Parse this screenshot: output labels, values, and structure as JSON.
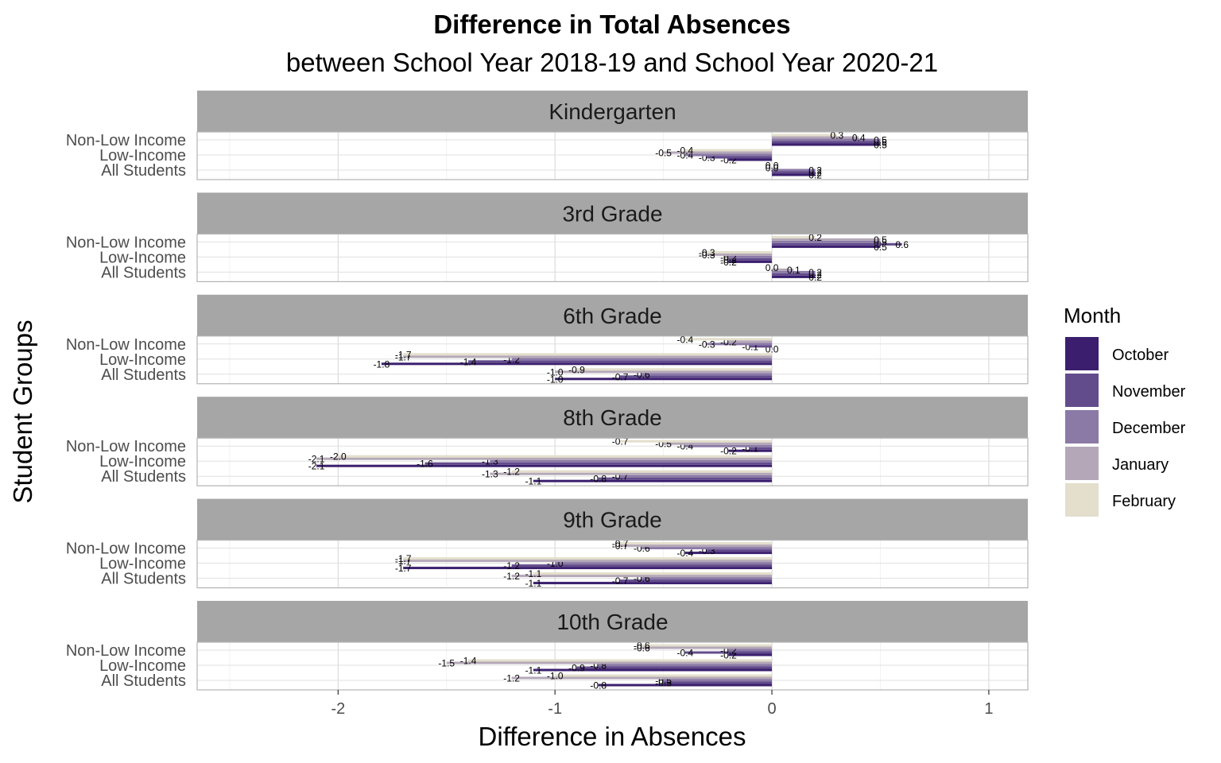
{
  "chart_data": {
    "type": "bar",
    "orientation": "horizontal",
    "title": "Difference in Total Absences",
    "subtitle": "between School Year 2018-19 and School Year 2020-21",
    "xlabel": "Difference in Absences",
    "ylabel": "Student Groups",
    "xlim": [
      -2.65,
      1.18
    ],
    "x_ticks": [
      -2,
      -1,
      0,
      1
    ],
    "x_tick_labels": [
      "-2",
      "-1",
      "0",
      "1"
    ],
    "grid": true,
    "legend": {
      "title": "Month",
      "position": "right",
      "entries": [
        {
          "name": "October",
          "color": "#3b1f6e"
        },
        {
          "name": "November",
          "color": "#634c8c"
        },
        {
          "name": "December",
          "color": "#8b7aa6"
        },
        {
          "name": "January",
          "color": "#b4a8b8"
        },
        {
          "name": "February",
          "color": "#e3dfcc"
        }
      ]
    },
    "groups": [
      "Non-Low Income",
      "Low-Income",
      "All Students"
    ],
    "panels": [
      {
        "name": "Kindergarten",
        "rows": [
          {
            "group": "Non-Low Income",
            "values": [
              0.5,
              0.5,
              0.5,
              0.4,
              0.3
            ]
          },
          {
            "group": "Low-Income",
            "values": [
              -0.2,
              -0.3,
              -0.4,
              -0.5,
              -0.4
            ]
          },
          {
            "group": "All Students",
            "values": [
              0.2,
              0.2,
              0.2,
              0.0,
              0.0
            ]
          }
        ]
      },
      {
        "name": "3rd Grade",
        "rows": [
          {
            "group": "Non-Low Income",
            "values": [
              0.5,
              0.6,
              0.5,
              0.5,
              0.2
            ]
          },
          {
            "group": "Low-Income",
            "values": [
              -0.2,
              -0.2,
              -0.2,
              -0.3,
              -0.3
            ]
          },
          {
            "group": "All Students",
            "values": [
              0.2,
              0.2,
              0.2,
              0.1,
              0.0
            ]
          }
        ]
      },
      {
        "name": "6th Grade",
        "rows": [
          {
            "group": "Non-Low Income",
            "values": [
              0.0,
              -0.1,
              -0.3,
              -0.2,
              -0.4
            ]
          },
          {
            "group": "Low-Income",
            "values": [
              -1.8,
              -1.4,
              -1.2,
              -1.7,
              -1.7
            ]
          },
          {
            "group": "All Students",
            "values": [
              -1.0,
              -0.7,
              -0.6,
              -1.0,
              -0.9
            ]
          }
        ]
      },
      {
        "name": "8th Grade",
        "rows": [
          {
            "group": "Non-Low Income",
            "values": [
              -0.2,
              -0.1,
              -0.4,
              -0.5,
              -0.7
            ]
          },
          {
            "group": "Low-Income",
            "values": [
              -2.1,
              -1.6,
              -1.3,
              -2.1,
              -2.0
            ]
          },
          {
            "group": "All Students",
            "values": [
              -1.1,
              -0.8,
              -0.7,
              -1.3,
              -1.2
            ]
          }
        ]
      },
      {
        "name": "9th Grade",
        "rows": [
          {
            "group": "Non-Low Income",
            "values": [
              -0.4,
              -0.3,
              -0.6,
              -0.7,
              -0.7
            ]
          },
          {
            "group": "Low-Income",
            "values": [
              -1.7,
              -1.2,
              -1.0,
              -1.7,
              -1.7
            ]
          },
          {
            "group": "All Students",
            "values": [
              -1.1,
              -0.7,
              -0.6,
              -1.2,
              -1.1
            ]
          }
        ]
      },
      {
        "name": "10th Grade",
        "rows": [
          {
            "group": "Non-Low Income",
            "values": [
              -0.2,
              -0.4,
              -0.2,
              -0.6,
              -0.6
            ]
          },
          {
            "group": "Low-Income",
            "values": [
              -1.1,
              -0.9,
              -0.8,
              -1.5,
              -1.4
            ]
          },
          {
            "group": "All Students",
            "values": [
              -0.8,
              -0.5,
              -0.5,
              -1.2,
              -1.0
            ]
          }
        ]
      }
    ]
  }
}
